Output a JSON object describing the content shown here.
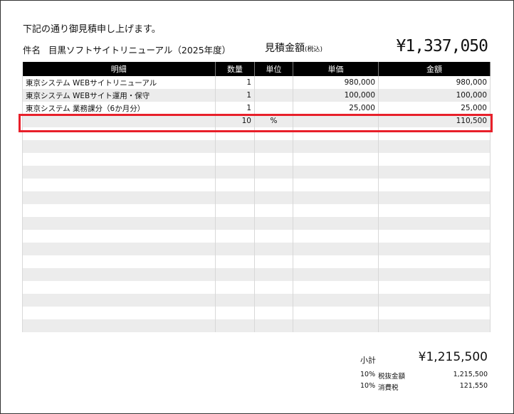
{
  "greeting": "下記の通り御見積申し上げます。",
  "subject_label": "件名",
  "subject": "目黒ソフトサイトリニューアル（2025年度）",
  "estimate_label": "見積金額",
  "estimate_note": "(税込)",
  "estimate_total": "¥1,337,050",
  "columns": [
    "明細",
    "数量",
    "単位",
    "単価",
    "金額"
  ],
  "rows": [
    [
      "東京システム WEBサイトリニューアル",
      "1",
      "",
      "980,000",
      "980,000"
    ],
    [
      "東京システム WEBサイト運用・保守",
      "1",
      "",
      "100,000",
      "100,000"
    ],
    [
      "東京システム 業務課分（6か月分）",
      "1",
      "",
      "25,000",
      "25,000"
    ],
    [
      "",
      "10",
      "%",
      "",
      "110,500"
    ]
  ],
  "highlight_color": "#e8202a",
  "summary": {
    "subtotal_label": "小計",
    "subtotal": "¥1,215,500",
    "lines": [
      {
        "rate": "10%",
        "label": "税抜金額",
        "value": "1,215,500"
      },
      {
        "rate": "10%",
        "label": "消費税",
        "value": "121,550"
      }
    ]
  }
}
